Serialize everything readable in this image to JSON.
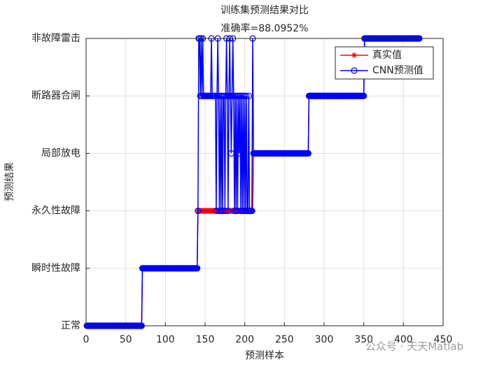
{
  "chart_data": {
    "type": "line",
    "title": [
      "训练集预测结果对比",
      "准确率=88.0952%"
    ],
    "xlabel": "预测样本",
    "ylabel": "预测结果",
    "watermark": "公众号 · 天天Matlab",
    "xlim": [
      0,
      450
    ],
    "xticks": [
      0,
      50,
      100,
      150,
      200,
      250,
      300,
      350,
      400,
      450
    ],
    "ylim": [
      1,
      6
    ],
    "yticks": [
      {
        "value": 1,
        "label": "正常"
      },
      {
        "value": 2,
        "label": "瞬时性故障"
      },
      {
        "value": 3,
        "label": "永久性故障"
      },
      {
        "value": 4,
        "label": "局部放电"
      },
      {
        "value": 5,
        "label": "断路器合闸"
      },
      {
        "value": 6,
        "label": "非故障雷击"
      }
    ],
    "grid": true,
    "legend": "upper right",
    "x": [
      1,
      2,
      3,
      4,
      5,
      6,
      7,
      8,
      9,
      10,
      11,
      12,
      13,
      14,
      15,
      16,
      17,
      18,
      19,
      20,
      21,
      22,
      23,
      24,
      25,
      26,
      27,
      28,
      29,
      30,
      31,
      32,
      33,
      34,
      35,
      36,
      37,
      38,
      39,
      40,
      41,
      42,
      43,
      44,
      45,
      46,
      47,
      48,
      49,
      50,
      51,
      52,
      53,
      54,
      55,
      56,
      57,
      58,
      59,
      60,
      61,
      62,
      63,
      64,
      65,
      66,
      67,
      68,
      69,
      70,
      71,
      72,
      73,
      74,
      75,
      76,
      77,
      78,
      79,
      80,
      81,
      82,
      83,
      84,
      85,
      86,
      87,
      88,
      89,
      90,
      91,
      92,
      93,
      94,
      95,
      96,
      97,
      98,
      99,
      100,
      101,
      102,
      103,
      104,
      105,
      106,
      107,
      108,
      109,
      110,
      111,
      112,
      113,
      114,
      115,
      116,
      117,
      118,
      119,
      120,
      121,
      122,
      123,
      124,
      125,
      126,
      127,
      128,
      129,
      130,
      131,
      132,
      133,
      134,
      135,
      136,
      137,
      138,
      139,
      140,
      141,
      142,
      143,
      144,
      145,
      146,
      147,
      148,
      149,
      150,
      151,
      152,
      153,
      154,
      155,
      156,
      157,
      158,
      159,
      160,
      161,
      162,
      163,
      164,
      165,
      166,
      167,
      168,
      169,
      170,
      171,
      172,
      173,
      174,
      175,
      176,
      177,
      178,
      179,
      180,
      181,
      182,
      183,
      184,
      185,
      186,
      187,
      188,
      189,
      190,
      191,
      192,
      193,
      194,
      195,
      196,
      197,
      198,
      199,
      200,
      201,
      202,
      203,
      204,
      205,
      206,
      207,
      208,
      209,
      210,
      211,
      212,
      213,
      214,
      215,
      216,
      217,
      218,
      219,
      220,
      221,
      222,
      223,
      224,
      225,
      226,
      227,
      228,
      229,
      230,
      231,
      232,
      233,
      234,
      235,
      236,
      237,
      238,
      239,
      240,
      241,
      242,
      243,
      244,
      245,
      246,
      247,
      248,
      249,
      250,
      251,
      252,
      253,
      254,
      255,
      256,
      257,
      258,
      259,
      260,
      261,
      262,
      263,
      264,
      265,
      266,
      267,
      268,
      269,
      270,
      271,
      272,
      273,
      274,
      275,
      276,
      277,
      278,
      279,
      280,
      281,
      282,
      283,
      284,
      285,
      286,
      287,
      288,
      289,
      290,
      291,
      292,
      293,
      294,
      295,
      296,
      297,
      298,
      299,
      300,
      301,
      302,
      303,
      304,
      305,
      306,
      307,
      308,
      309,
      310,
      311,
      312,
      313,
      314,
      315,
      316,
      317,
      318,
      319,
      320,
      321,
      322,
      323,
      324,
      325,
      326,
      327,
      328,
      329,
      330,
      331,
      332,
      333,
      334,
      335,
      336,
      337,
      338,
      339,
      340,
      341,
      342,
      343,
      344,
      345,
      346,
      347,
      348,
      349,
      350,
      351,
      352,
      353,
      354,
      355,
      356,
      357,
      358,
      359,
      360,
      361,
      362,
      363,
      364,
      365,
      366,
      367,
      368,
      369,
      370,
      371,
      372,
      373,
      374,
      375,
      376,
      377,
      378,
      379,
      380,
      381,
      382,
      383,
      384,
      385,
      386,
      387,
      388,
      389,
      390,
      391,
      392,
      393,
      394,
      395,
      396,
      397,
      398,
      399,
      400,
      401,
      402,
      403,
      404,
      405,
      406,
      407,
      408,
      409,
      410,
      411,
      412,
      413,
      414,
      415,
      416,
      417,
      418,
      419,
      420
    ],
    "series": [
      {
        "name": "真实值",
        "color": "#ff0000",
        "marker": "star",
        "values": [
          1,
          1,
          1,
          1,
          1,
          1,
          1,
          1,
          1,
          1,
          1,
          1,
          1,
          1,
          1,
          1,
          1,
          1,
          1,
          1,
          1,
          1,
          1,
          1,
          1,
          1,
          1,
          1,
          1,
          1,
          1,
          1,
          1,
          1,
          1,
          1,
          1,
          1,
          1,
          1,
          1,
          1,
          1,
          1,
          1,
          1,
          1,
          1,
          1,
          1,
          1,
          1,
          1,
          1,
          1,
          1,
          1,
          1,
          1,
          1,
          1,
          1,
          1,
          1,
          1,
          1,
          1,
          1,
          1,
          1,
          2,
          2,
          2,
          2,
          2,
          2,
          2,
          2,
          2,
          2,
          2,
          2,
          2,
          2,
          2,
          2,
          2,
          2,
          2,
          2,
          2,
          2,
          2,
          2,
          2,
          2,
          2,
          2,
          2,
          2,
          2,
          2,
          2,
          2,
          2,
          2,
          2,
          2,
          2,
          2,
          2,
          2,
          2,
          2,
          2,
          2,
          2,
          2,
          2,
          2,
          2,
          2,
          2,
          2,
          2,
          2,
          2,
          2,
          2,
          2,
          2,
          2,
          2,
          2,
          2,
          2,
          2,
          2,
          2,
          2,
          3,
          3,
          3,
          3,
          3,
          3,
          3,
          3,
          3,
          3,
          3,
          3,
          3,
          3,
          3,
          3,
          3,
          3,
          3,
          3,
          3,
          3,
          3,
          3,
          3,
          3,
          3,
          3,
          3,
          3,
          3,
          3,
          3,
          3,
          3,
          3,
          3,
          3,
          3,
          3,
          3,
          3,
          3,
          3,
          3,
          3,
          3,
          3,
          3,
          3,
          3,
          3,
          3,
          3,
          3,
          3,
          3,
          3,
          3,
          3,
          3,
          3,
          3,
          3,
          3,
          3,
          3,
          3,
          3,
          3,
          4,
          4,
          4,
          4,
          4,
          4,
          4,
          4,
          4,
          4,
          4,
          4,
          4,
          4,
          4,
          4,
          4,
          4,
          4,
          4,
          4,
          4,
          4,
          4,
          4,
          4,
          4,
          4,
          4,
          4,
          4,
          4,
          4,
          4,
          4,
          4,
          4,
          4,
          4,
          4,
          4,
          4,
          4,
          4,
          4,
          4,
          4,
          4,
          4,
          4,
          4,
          4,
          4,
          4,
          4,
          4,
          4,
          4,
          4,
          4,
          4,
          4,
          4,
          4,
          4,
          4,
          4,
          4,
          4,
          4,
          5,
          5,
          5,
          5,
          5,
          5,
          5,
          5,
          5,
          5,
          5,
          5,
          5,
          5,
          5,
          5,
          5,
          5,
          5,
          5,
          5,
          5,
          5,
          5,
          5,
          5,
          5,
          5,
          5,
          5,
          5,
          5,
          5,
          5,
          5,
          5,
          5,
          5,
          5,
          5,
          5,
          5,
          5,
          5,
          5,
          5,
          5,
          5,
          5,
          5,
          5,
          5,
          5,
          5,
          5,
          5,
          5,
          5,
          5,
          5,
          5,
          5,
          5,
          5,
          5,
          5,
          5,
          5,
          5,
          5,
          6,
          6,
          6,
          6,
          6,
          6,
          6,
          6,
          6,
          6,
          6,
          6,
          6,
          6,
          6,
          6,
          6,
          6,
          6,
          6,
          6,
          6,
          6,
          6,
          6,
          6,
          6,
          6,
          6,
          6,
          6,
          6,
          6,
          6,
          6,
          6,
          6,
          6,
          6,
          6,
          6,
          6,
          6,
          6,
          6,
          6,
          6,
          6,
          6,
          6,
          6,
          6,
          6,
          6,
          6,
          6,
          6,
          6,
          6,
          6,
          6,
          6,
          6,
          6,
          6,
          6,
          6,
          6,
          6,
          6
        ]
      },
      {
        "name": "CNN预测值",
        "color": "#0000ff",
        "marker": "circle",
        "values": [
          1,
          1,
          1,
          1,
          1,
          1,
          1,
          1,
          1,
          1,
          1,
          1,
          1,
          1,
          1,
          1,
          1,
          1,
          1,
          1,
          1,
          1,
          1,
          1,
          1,
          1,
          1,
          1,
          1,
          1,
          1,
          1,
          1,
          1,
          1,
          1,
          1,
          1,
          1,
          1,
          1,
          1,
          1,
          1,
          1,
          1,
          1,
          1,
          1,
          1,
          1,
          1,
          1,
          1,
          1,
          1,
          1,
          1,
          1,
          1,
          1,
          1,
          1,
          1,
          1,
          1,
          1,
          1,
          1,
          1,
          2,
          2,
          2,
          2,
          2,
          2,
          2,
          2,
          2,
          2,
          2,
          2,
          2,
          2,
          2,
          2,
          2,
          2,
          2,
          2,
          2,
          2,
          2,
          2,
          2,
          2,
          2,
          2,
          2,
          2,
          2,
          2,
          2,
          2,
          2,
          2,
          2,
          2,
          2,
          2,
          2,
          2,
          2,
          2,
          2,
          2,
          2,
          2,
          2,
          2,
          2,
          2,
          2,
          2,
          2,
          2,
          2,
          2,
          2,
          2,
          2,
          2,
          2,
          2,
          2,
          2,
          2,
          2,
          2,
          2,
          3,
          6,
          6,
          5,
          6,
          5,
          6,
          5,
          5,
          5,
          5,
          5,
          5,
          5,
          5,
          5,
          5,
          6,
          5,
          5,
          5,
          5,
          5,
          3,
          5,
          6,
          5,
          3,
          5,
          3,
          5,
          3,
          5,
          5,
          3,
          5,
          6,
          5,
          3,
          5,
          6,
          5,
          4,
          5,
          6,
          5,
          3,
          5,
          3,
          5,
          3,
          5,
          4,
          5,
          3,
          5,
          3,
          5,
          3,
          5,
          3,
          5,
          3,
          3,
          5,
          3,
          3,
          3,
          3,
          6,
          4,
          4,
          4,
          4,
          4,
          4,
          4,
          4,
          4,
          4,
          4,
          4,
          4,
          4,
          4,
          4,
          4,
          4,
          4,
          4,
          4,
          4,
          4,
          4,
          4,
          4,
          4,
          4,
          4,
          4,
          4,
          4,
          4,
          4,
          4,
          4,
          4,
          4,
          4,
          4,
          4,
          4,
          4,
          4,
          4,
          4,
          4,
          4,
          4,
          4,
          4,
          4,
          4,
          4,
          4,
          4,
          4,
          4,
          4,
          4,
          4,
          4,
          4,
          4,
          4,
          4,
          4,
          4,
          4,
          4,
          5,
          5,
          5,
          5,
          5,
          5,
          5,
          5,
          5,
          5,
          5,
          5,
          5,
          5,
          5,
          5,
          5,
          5,
          5,
          5,
          5,
          5,
          5,
          5,
          5,
          5,
          5,
          5,
          5,
          5,
          5,
          5,
          5,
          5,
          5,
          5,
          5,
          5,
          5,
          5,
          5,
          5,
          5,
          5,
          5,
          5,
          5,
          5,
          5,
          5,
          5,
          5,
          5,
          5,
          5,
          5,
          5,
          5,
          5,
          5,
          5,
          5,
          5,
          5,
          5,
          5,
          5,
          5,
          5,
          5,
          6,
          6,
          6,
          6,
          6,
          6,
          6,
          6,
          6,
          6,
          6,
          6,
          6,
          6,
          6,
          6,
          6,
          6,
          6,
          6,
          6,
          6,
          6,
          6,
          6,
          6,
          6,
          6,
          6,
          6,
          6,
          6,
          6,
          6,
          6,
          6,
          6,
          6,
          6,
          6,
          6,
          6,
          6,
          6,
          6,
          6,
          6,
          6,
          6,
          6,
          6,
          6,
          6,
          6,
          6,
          6,
          6,
          6,
          6,
          6,
          6,
          6,
          6,
          6,
          6,
          6,
          6,
          6,
          6,
          6
        ]
      }
    ]
  }
}
